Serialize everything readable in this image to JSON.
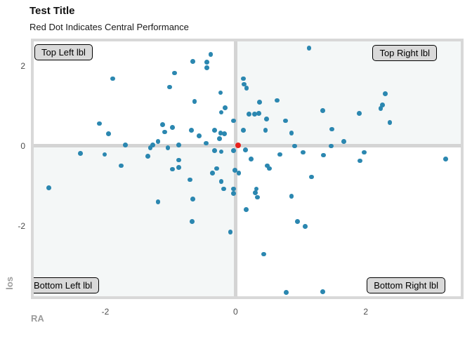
{
  "header": {
    "title": "Test Title",
    "subtitle": "Red Dot Indicates Central Performance"
  },
  "axes": {
    "x_title": "RA",
    "y_title": "los"
  },
  "quadrant_labels": {
    "top_left": "Top Left lbl",
    "top_right": "Top Right lbl",
    "bottom_left": "Bottom Left lbl",
    "bottom_right": "Bottom Right lbl"
  },
  "colors": {
    "point": "#2b87b0",
    "center_point": "#e8211d",
    "panel_border": "#d8d8d8",
    "zero_line": "#d4d4d4",
    "quadrant_shade": "#f4f7f7",
    "label_box_bg": "#d9d9d9",
    "tick_text": "#4d4d4d",
    "axis_title_text": "#9b9b9b"
  },
  "chart_data": {
    "type": "scatter",
    "title": "Test Title",
    "subtitle": "Red Dot Indicates Central Performance",
    "xlabel": "RA",
    "ylabel": "los",
    "xlim": [
      -3.1,
      3.46
    ],
    "ylim": [
      -3.75,
      2.61
    ],
    "x_ticks": [
      -2,
      0,
      2
    ],
    "y_ticks": [
      -2,
      0,
      2
    ],
    "grid": false,
    "zero_lines": true,
    "shaded_quadrants": [
      "top_right",
      "bottom_left"
    ],
    "legend": "none",
    "series": [
      {
        "name": "observations",
        "color": "#2b87b0",
        "radius": 3.4,
        "point_name": "data-point",
        "xy": [
          [
            -1.89,
            1.68
          ],
          [
            -0.94,
            1.82
          ],
          [
            -1.01,
            1.47
          ],
          [
            -2.09,
            0.56
          ],
          [
            -1.12,
            0.53
          ],
          [
            -0.97,
            0.47
          ],
          [
            1.13,
            2.44
          ],
          [
            -0.38,
            2.28
          ],
          [
            -0.66,
            2.11
          ],
          [
            -0.44,
            2.09
          ],
          [
            -0.44,
            1.95
          ],
          [
            0.12,
            1.68
          ],
          [
            0.13,
            1.54
          ],
          [
            0.17,
            1.44
          ],
          [
            -0.23,
            1.33
          ],
          [
            -0.63,
            1.11
          ],
          [
            0.64,
            1.14
          ],
          [
            0.37,
            1.09
          ],
          [
            -0.16,
            0.95
          ],
          [
            -0.22,
            0.84
          ],
          [
            0.21,
            0.79
          ],
          [
            0.29,
            0.79
          ],
          [
            0.36,
            0.82
          ],
          [
            0.48,
            0.68
          ],
          [
            -0.03,
            0.63
          ],
          [
            0.77,
            0.63
          ],
          [
            1.34,
            0.88
          ],
          [
            -0.68,
            0.39
          ],
          [
            -0.32,
            0.4
          ],
          [
            0.12,
            0.4
          ],
          [
            0.46,
            0.4
          ],
          [
            2.3,
            1.3
          ],
          [
            2.23,
            0.93
          ],
          [
            2.26,
            1.02
          ],
          [
            1.9,
            0.82
          ],
          [
            2.37,
            0.58
          ],
          [
            1.48,
            0.42
          ],
          [
            -1.95,
            0.3
          ],
          [
            -1.09,
            0.35
          ],
          [
            -1.69,
            0.02
          ],
          [
            -1.31,
            -0.04
          ],
          [
            -1.27,
            0.02
          ],
          [
            -1.19,
            0.12
          ],
          [
            -1.04,
            -0.05
          ],
          [
            -2.38,
            -0.18
          ],
          [
            -2.01,
            -0.21
          ],
          [
            -1.35,
            -0.25
          ],
          [
            -1.76,
            -0.49
          ],
          [
            -0.97,
            -0.58
          ],
          [
            -2.87,
            -1.04
          ],
          [
            -1.19,
            -1.39
          ],
          [
            -0.56,
            0.26
          ],
          [
            -0.23,
            0.33
          ],
          [
            -0.17,
            0.3
          ],
          [
            -0.25,
            0.19
          ],
          [
            0.86,
            0.33
          ],
          [
            -0.87,
            0.02
          ],
          [
            -0.45,
            0.07
          ],
          [
            -0.32,
            -0.12
          ],
          [
            -0.22,
            -0.14
          ],
          [
            -0.03,
            -0.11
          ],
          [
            0.15,
            -0.09
          ],
          [
            0.24,
            -0.32
          ],
          [
            0.68,
            -0.21
          ],
          [
            0.91,
            0.0
          ],
          [
            1.04,
            -0.16
          ],
          [
            1.35,
            -0.23
          ],
          [
            -0.87,
            -0.35
          ],
          [
            -0.87,
            -0.53
          ],
          [
            -0.35,
            -0.68
          ],
          [
            -0.29,
            -0.56
          ],
          [
            0.05,
            -0.67
          ],
          [
            -0.01,
            -0.61
          ],
          [
            0.49,
            -0.49
          ],
          [
            0.52,
            -0.56
          ],
          [
            1.17,
            -0.77
          ],
          [
            -0.7,
            -0.84
          ],
          [
            -0.22,
            -0.89
          ],
          [
            -0.18,
            -1.07
          ],
          [
            -0.03,
            -1.07
          ],
          [
            -0.03,
            -1.18
          ],
          [
            0.32,
            -1.07
          ],
          [
            0.3,
            -1.16
          ],
          [
            0.34,
            -1.28
          ],
          [
            -0.66,
            -1.32
          ],
          [
            0.86,
            -1.25
          ],
          [
            0.16,
            -1.58
          ],
          [
            -0.67,
            -1.88
          ],
          [
            0.95,
            -1.88
          ],
          [
            1.66,
            0.11
          ],
          [
            1.47,
            0.0
          ],
          [
            1.98,
            -0.16
          ],
          [
            1.91,
            -0.37
          ],
          [
            3.23,
            -0.32
          ],
          [
            -0.08,
            -2.14
          ],
          [
            1.07,
            -2.0
          ],
          [
            0.43,
            -2.7
          ],
          [
            0.78,
            -3.65
          ],
          [
            1.34,
            -3.63
          ]
        ]
      },
      {
        "name": "central-performance",
        "color": "#e8211d",
        "radius": 4,
        "point_name": "central-performance-point",
        "xy": [
          [
            0.04,
            0.02
          ]
        ]
      }
    ]
  }
}
